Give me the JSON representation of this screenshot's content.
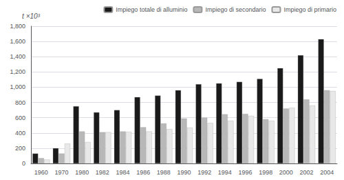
{
  "chart_data": {
    "type": "bar",
    "ylabel": "t ×10³",
    "categories": [
      "1960",
      "1970",
      "1980",
      "1982",
      "1984",
      "1986",
      "1988",
      "1990",
      "1992",
      "1994",
      "1996",
      "1998",
      "2000",
      "2002",
      "2004"
    ],
    "series": [
      {
        "name": "Impiego totale di alluminio",
        "color": "#1a1a1a",
        "values": [
          130,
          200,
          750,
          670,
          700,
          870,
          890,
          960,
          1040,
          1050,
          1070,
          1110,
          1250,
          1420,
          1630
        ]
      },
      {
        "name": "Impiego di secondario",
        "color": "#b8b8b8",
        "values": [
          70,
          130,
          420,
          410,
          420,
          475,
          525,
          590,
          600,
          645,
          650,
          580,
          720,
          840,
          960
        ]
      },
      {
        "name": "Impiego di primario",
        "color": "#e8e8e8",
        "values": [
          50,
          260,
          280,
          410,
          415,
          420,
          450,
          470,
          530,
          560,
          625,
          560,
          730,
          760,
          950
        ]
      }
    ],
    "ylim": [
      0,
      1800
    ],
    "yticks": [
      0,
      200,
      400,
      600,
      800,
      1000,
      1200,
      1400,
      1600,
      1800
    ],
    "grid": true,
    "legend": "top"
  }
}
